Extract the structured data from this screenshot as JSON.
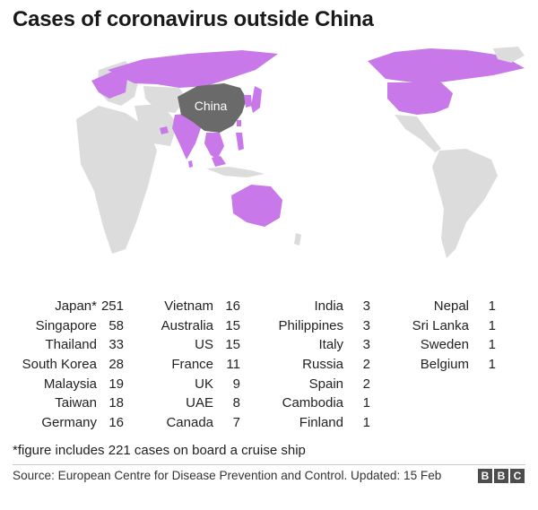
{
  "title": "Cases of coronavirus outside China",
  "map": {
    "highlight_label": "China",
    "colors": {
      "ocean": "#ffffff",
      "land": "#dcdcdc",
      "affected": "#c878e8",
      "china": "#6a6a6a"
    }
  },
  "columns": [
    [
      {
        "name": "Japan*",
        "value": "251"
      },
      {
        "name": "Singapore",
        "value": "58"
      },
      {
        "name": "Thailand",
        "value": "33"
      },
      {
        "name": "South Korea",
        "value": "28"
      },
      {
        "name": "Malaysia",
        "value": "19"
      },
      {
        "name": "Taiwan",
        "value": "18"
      },
      {
        "name": "Germany",
        "value": "16"
      }
    ],
    [
      {
        "name": "Vietnam",
        "value": "16"
      },
      {
        "name": "Australia",
        "value": "15"
      },
      {
        "name": "US",
        "value": "15"
      },
      {
        "name": "France",
        "value": "11"
      },
      {
        "name": "UK",
        "value": "9"
      },
      {
        "name": "UAE",
        "value": "8"
      },
      {
        "name": "Canada",
        "value": "7"
      }
    ],
    [
      {
        "name": "India",
        "value": "3"
      },
      {
        "name": "Philippines",
        "value": "3"
      },
      {
        "name": "Italy",
        "value": "3"
      },
      {
        "name": "Russia",
        "value": "2"
      },
      {
        "name": "Spain",
        "value": "2"
      },
      {
        "name": "Cambodia",
        "value": "1"
      },
      {
        "name": "Finland",
        "value": "1"
      }
    ],
    [
      {
        "name": "Nepal",
        "value": "1"
      },
      {
        "name": "Sri Lanka",
        "value": "1"
      },
      {
        "name": "Sweden",
        "value": "1"
      },
      {
        "name": "Belgium",
        "value": "1"
      }
    ]
  ],
  "footnote": "*figure includes 221 cases on board a cruise ship",
  "source": "Source: European Centre for Disease Prevention and Control. Updated: 15 Feb",
  "logo_letters": [
    "B",
    "B",
    "C"
  ]
}
